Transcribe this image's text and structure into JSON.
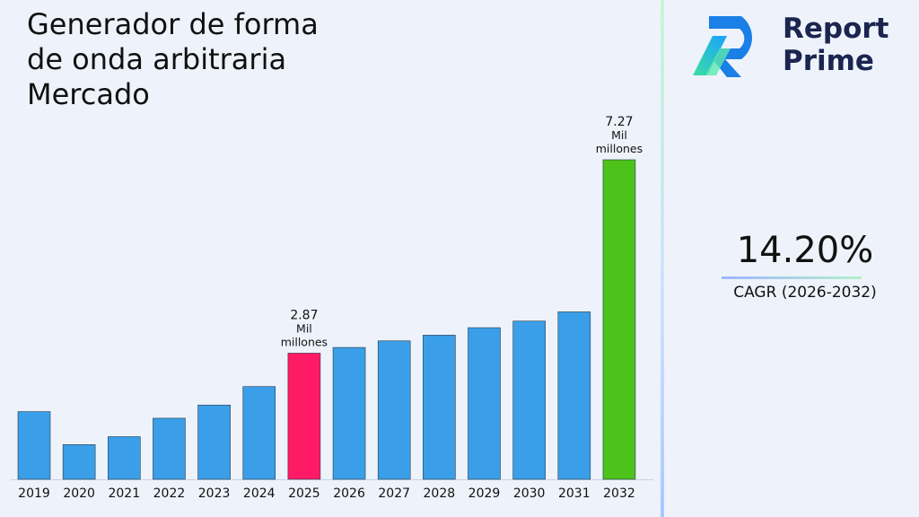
{
  "chart_data": {
    "type": "bar",
    "title": "Generador de forma\nde onda arbitraria\nMercado",
    "categories": [
      "2019",
      "2020",
      "2021",
      "2022",
      "2023",
      "2024",
      "2025",
      "2026",
      "2027",
      "2028",
      "2029",
      "2030",
      "2031",
      "2032"
    ],
    "values": [
      1.54,
      0.79,
      0.97,
      1.39,
      1.69,
      2.11,
      2.87,
      3.0,
      3.15,
      3.28,
      3.45,
      3.6,
      3.81,
      7.27
    ],
    "colors": [
      "#3a9fe8",
      "#3a9fe8",
      "#3a9fe8",
      "#3a9fe8",
      "#3a9fe8",
      "#3a9fe8",
      "#ff1a66",
      "#3a9fe8",
      "#3a9fe8",
      "#3a9fe8",
      "#3a9fe8",
      "#3a9fe8",
      "#3a9fe8",
      "#4cc21a"
    ],
    "ylim": [
      0,
      7.27
    ],
    "grid": false,
    "annotations": [
      {
        "category": "2025",
        "value": "2.87",
        "unit_line1": "Mil",
        "unit_line2": "millones"
      },
      {
        "category": "2032",
        "value": "7.27",
        "unit_line1": "Mil",
        "unit_line2": "millones"
      }
    ]
  },
  "brand": {
    "line1": "Report",
    "line2": "Prime"
  },
  "cagr": {
    "value": "14.20%",
    "label": "CAGR (2026-2032)"
  }
}
